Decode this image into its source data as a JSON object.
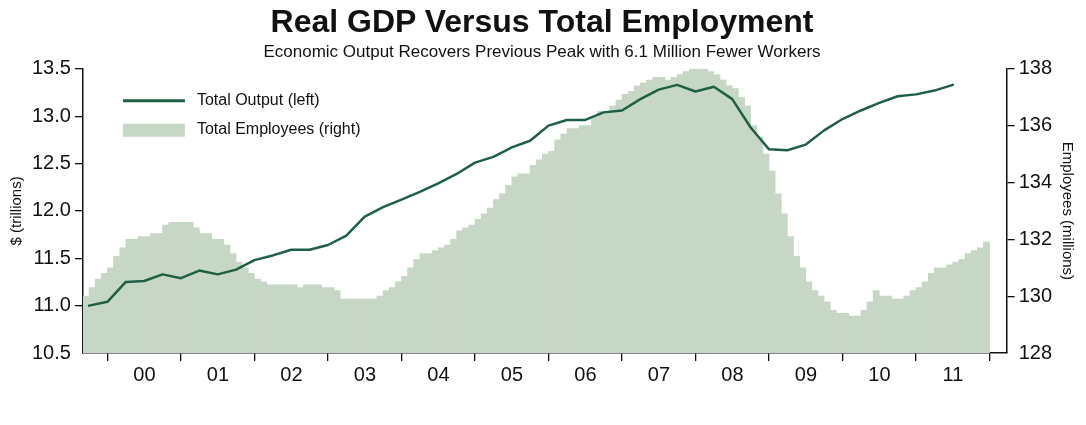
{
  "chart_data": {
    "type": "line",
    "title": "Real GDP Versus Total Employment",
    "subtitle": "Economic Output Recovers Previous Peak with 6.1 Million Fewer Workers",
    "ylabel": "$ (trillions)",
    "y2label": "Employees (millions)",
    "xlim": [
      "1999-09-01",
      "2012-03-25"
    ],
    "xticks": [
      {
        "value": "2000-01-01",
        "label": null
      },
      {
        "value": "2000-07-02",
        "label": "00"
      },
      {
        "value": "2001-01-01",
        "label": null
      },
      {
        "value": "2001-07-02",
        "label": "01"
      },
      {
        "value": "2002-01-01",
        "label": null
      },
      {
        "value": "2002-07-02",
        "label": "02"
      },
      {
        "value": "2003-01-01",
        "label": null
      },
      {
        "value": "2003-07-02",
        "label": "03"
      },
      {
        "value": "2004-01-01",
        "label": null
      },
      {
        "value": "2004-07-02",
        "label": "04"
      },
      {
        "value": "2005-01-01",
        "label": null
      },
      {
        "value": "2005-07-02",
        "label": "05"
      },
      {
        "value": "2006-01-01",
        "label": null
      },
      {
        "value": "2006-07-02",
        "label": "06"
      },
      {
        "value": "2007-01-01",
        "label": null
      },
      {
        "value": "2007-07-02",
        "label": "07"
      },
      {
        "value": "2008-01-01",
        "label": null
      },
      {
        "value": "2008-07-02",
        "label": "08"
      },
      {
        "value": "2009-01-01",
        "label": null
      },
      {
        "value": "2009-07-02",
        "label": "09"
      },
      {
        "value": "2010-01-01",
        "label": null
      },
      {
        "value": "2010-07-02",
        "label": "10"
      },
      {
        "value": "2011-01-01",
        "label": null
      },
      {
        "value": "2011-07-02",
        "label": "11"
      },
      {
        "value": "2012-01-01",
        "label": null
      }
    ],
    "ylim": [
      10.5,
      13.5
    ],
    "yticks": [
      {
        "value": 10.5,
        "label": "10.5"
      },
      {
        "value": 11,
        "label": "11.0"
      },
      {
        "value": 11.5,
        "label": "11.5"
      },
      {
        "value": 12,
        "label": "12.0"
      },
      {
        "value": 12.5,
        "label": "12.5"
      },
      {
        "value": 13,
        "label": "13.0"
      },
      {
        "value": 13.5,
        "label": "13.5"
      }
    ],
    "y2lim": [
      128,
      138
    ],
    "y2ticks": [
      128,
      130,
      132,
      134,
      136,
      138
    ],
    "grid": false,
    "legend": "top left",
    "marker": "none",
    "line_style": "solid",
    "series": [
      {
        "name": "Total Output (left)",
        "axis": "y",
        "color": "#1f6045",
        "x": [
          "1999-10-01",
          "2000-01-01",
          "2000-04-01",
          "2000-07-01",
          "2000-10-01",
          "2001-01-01",
          "2001-04-01",
          "2001-07-01",
          "2001-10-01",
          "2002-01-01",
          "2002-04-01",
          "2002-07-01",
          "2002-10-01",
          "2003-01-01",
          "2003-04-01",
          "2003-07-01",
          "2003-10-01",
          "2004-01-01",
          "2004-04-01",
          "2004-07-01",
          "2004-10-01",
          "2005-01-01",
          "2005-04-01",
          "2005-07-01",
          "2005-10-01",
          "2006-01-01",
          "2006-04-01",
          "2006-07-01",
          "2006-10-01",
          "2007-01-01",
          "2007-04-01",
          "2007-07-01",
          "2007-10-01",
          "2008-01-01",
          "2008-04-01",
          "2008-07-01",
          "2008-10-01",
          "2009-01-01",
          "2009-04-01",
          "2009-07-01",
          "2009-10-01",
          "2010-01-01",
          "2010-04-01",
          "2010-07-01",
          "2010-10-01",
          "2011-01-01",
          "2011-04-01",
          "2011-07-01"
        ],
        "values": [
          11.0,
          11.04,
          11.25,
          11.26,
          11.33,
          11.29,
          11.37,
          11.33,
          11.38,
          11.48,
          11.53,
          11.59,
          11.59,
          11.64,
          11.74,
          11.94,
          12.04,
          12.12,
          12.2,
          12.29,
          12.39,
          12.51,
          12.57,
          12.67,
          12.74,
          12.9,
          12.96,
          12.96,
          13.04,
          13.06,
          13.18,
          13.28,
          13.33,
          13.26,
          13.31,
          13.18,
          12.88,
          12.65,
          12.64,
          12.7,
          12.85,
          12.97,
          13.06,
          13.14,
          13.21,
          13.23,
          13.27,
          13.33
        ]
      },
      {
        "name": "Total Employees (right)",
        "type": "bar",
        "axis": "y2",
        "color": "#c7d7c6",
        "x": [
          "1999-09",
          "1999-10",
          "1999-11",
          "1999-12",
          "2000-01",
          "2000-02",
          "2000-03",
          "2000-04",
          "2000-05",
          "2000-06",
          "2000-07",
          "2000-08",
          "2000-09",
          "2000-10",
          "2000-11",
          "2000-12",
          "2001-01",
          "2001-02",
          "2001-03",
          "2001-04",
          "2001-05",
          "2001-06",
          "2001-07",
          "2001-08",
          "2001-09",
          "2001-10",
          "2001-11",
          "2001-12",
          "2002-01",
          "2002-02",
          "2002-03",
          "2002-04",
          "2002-05",
          "2002-06",
          "2002-07",
          "2002-08",
          "2002-09",
          "2002-10",
          "2002-11",
          "2002-12",
          "2003-01",
          "2003-02",
          "2003-03",
          "2003-04",
          "2003-05",
          "2003-06",
          "2003-07",
          "2003-08",
          "2003-09",
          "2003-10",
          "2003-11",
          "2003-12",
          "2004-01",
          "2004-02",
          "2004-03",
          "2004-04",
          "2004-05",
          "2004-06",
          "2004-07",
          "2004-08",
          "2004-09",
          "2004-10",
          "2004-11",
          "2004-12",
          "2005-01",
          "2005-02",
          "2005-03",
          "2005-04",
          "2005-05",
          "2005-06",
          "2005-07",
          "2005-08",
          "2005-09",
          "2005-10",
          "2005-11",
          "2005-12",
          "2006-01",
          "2006-02",
          "2006-03",
          "2006-04",
          "2006-05",
          "2006-06",
          "2006-07",
          "2006-08",
          "2006-09",
          "2006-10",
          "2006-11",
          "2006-12",
          "2007-01",
          "2007-02",
          "2007-03",
          "2007-04",
          "2007-05",
          "2007-06",
          "2007-07",
          "2007-08",
          "2007-09",
          "2007-10",
          "2007-11",
          "2007-12",
          "2008-01",
          "2008-02",
          "2008-03",
          "2008-04",
          "2008-05",
          "2008-06",
          "2008-07",
          "2008-08",
          "2008-09",
          "2008-10",
          "2008-11",
          "2008-12",
          "2009-01",
          "2009-02",
          "2009-03",
          "2009-04",
          "2009-05",
          "2009-06",
          "2009-07",
          "2009-08",
          "2009-09",
          "2009-10",
          "2009-11",
          "2009-12",
          "2010-01",
          "2010-02",
          "2010-03",
          "2010-04",
          "2010-05",
          "2010-06",
          "2010-07",
          "2010-08",
          "2010-09",
          "2010-10",
          "2010-11",
          "2010-12",
          "2011-01",
          "2011-02",
          "2011-03",
          "2011-04",
          "2011-05",
          "2011-06",
          "2011-07",
          "2011-08",
          "2011-09",
          "2011-10",
          "2011-11",
          "2011-12"
        ],
        "values": [
          130.0,
          130.3,
          130.6,
          130.8,
          131.0,
          131.4,
          131.7,
          132.0,
          132.0,
          132.1,
          132.1,
          132.2,
          132.2,
          132.5,
          132.6,
          132.6,
          132.6,
          132.6,
          132.4,
          132.2,
          132.2,
          132.0,
          132.0,
          131.8,
          131.5,
          131.2,
          131.0,
          130.8,
          130.6,
          130.5,
          130.4,
          130.4,
          130.4,
          130.4,
          130.4,
          130.3,
          130.4,
          130.4,
          130.4,
          130.3,
          130.3,
          130.2,
          129.9,
          129.9,
          129.9,
          129.9,
          129.9,
          129.9,
          130.0,
          130.2,
          130.3,
          130.5,
          130.7,
          131.0,
          131.3,
          131.5,
          131.5,
          131.6,
          131.7,
          131.8,
          132.0,
          132.3,
          132.4,
          132.5,
          132.7,
          132.9,
          133.1,
          133.4,
          133.6,
          133.9,
          134.2,
          134.3,
          134.3,
          134.6,
          134.8,
          135.0,
          135.1,
          135.5,
          135.7,
          135.9,
          135.9,
          136.0,
          136.0,
          136.3,
          136.5,
          136.5,
          136.7,
          136.9,
          137.1,
          137.2,
          137.4,
          137.5,
          137.6,
          137.7,
          137.7,
          137.6,
          137.7,
          137.8,
          137.9,
          138.0,
          138.0,
          138.0,
          137.9,
          137.8,
          137.6,
          137.4,
          137.3,
          137.0,
          136.7,
          136.0,
          135.6,
          135.0,
          134.4,
          133.6,
          132.9,
          132.1,
          131.4,
          131.0,
          130.5,
          130.2,
          130.0,
          129.8,
          129.5,
          129.4,
          129.4,
          129.3,
          129.3,
          129.5,
          129.8,
          130.2,
          130.0,
          130.0,
          129.9,
          129.9,
          130.0,
          130.2,
          130.3,
          130.5,
          130.8,
          131.0,
          131.0,
          131.1,
          131.2,
          131.3,
          131.5,
          131.6,
          131.7,
          131.9
        ]
      }
    ]
  }
}
